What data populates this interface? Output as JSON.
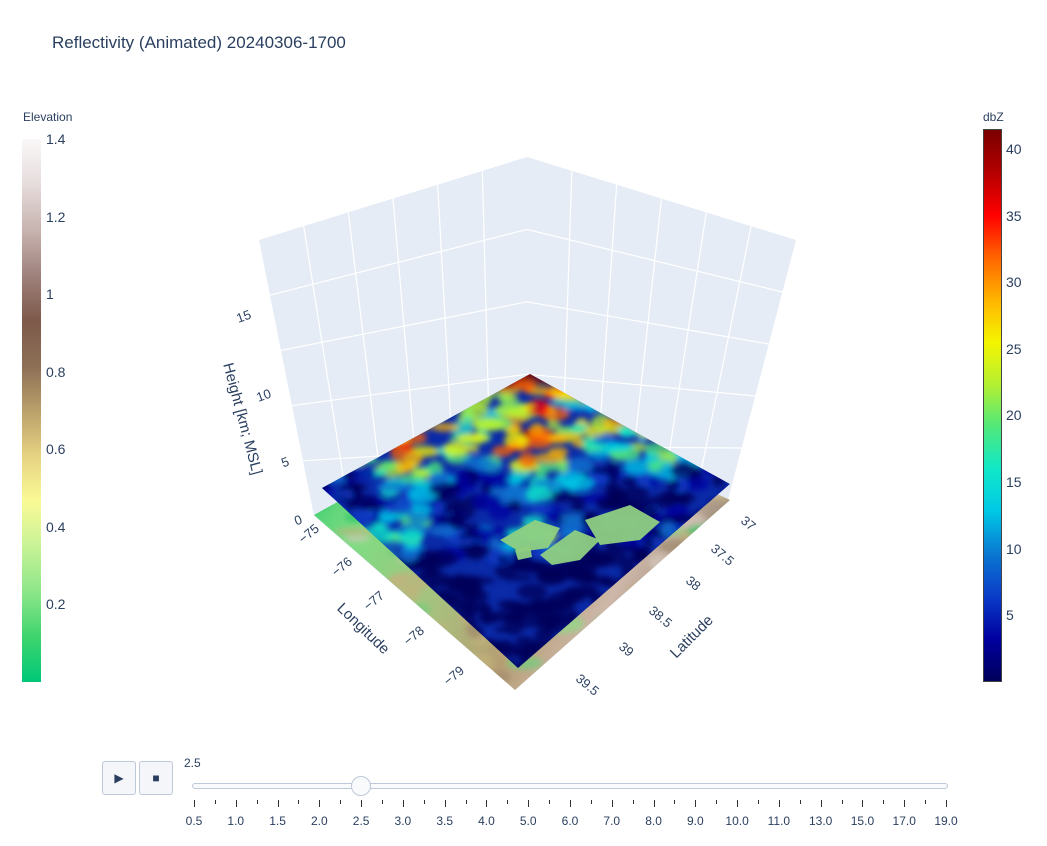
{
  "title": "Reflectivity (Animated) 20240306-1700",
  "colorbars": {
    "elevation": {
      "title": "Elevation",
      "ticks": [
        "1.4",
        "1.2",
        "1",
        "0.8",
        "0.6",
        "0.4",
        "0.2"
      ],
      "tick_values": [
        1.4,
        1.2,
        1.0,
        0.8,
        0.6,
        0.4,
        0.2
      ],
      "range": [
        0.0,
        1.4
      ],
      "colors": [
        "#00c878",
        "#3ed46e",
        "#8ee68a",
        "#c8f296",
        "#fafa96",
        "#e6d282",
        "#b9a06a",
        "#8c6e55",
        "#7d5a4b",
        "#a0827d",
        "#c8b4b0",
        "#e6dcdc",
        "#faf8f8"
      ]
    },
    "reflectivity": {
      "title": "dbZ",
      "ticks": [
        "40",
        "35",
        "30",
        "25",
        "20",
        "15",
        "10",
        "5"
      ],
      "tick_values": [
        40,
        35,
        30,
        25,
        20,
        15,
        10,
        5
      ],
      "range": [
        0.0,
        41.5
      ],
      "colors": [
        "#00005a",
        "#0000a0",
        "#0a3cc8",
        "#0a78d2",
        "#00c8e6",
        "#10e8c8",
        "#50e87a",
        "#b4f032",
        "#f5f500",
        "#ffb400",
        "#ff6400",
        "#ff0000",
        "#b40000",
        "#7a0000"
      ]
    }
  },
  "chart_data": {
    "type": "3d-surface",
    "title": "Reflectivity (Animated) 20240306-1700",
    "axes": {
      "x": {
        "label": "Longitude",
        "ticks": [
          "−75",
          "−76",
          "−77",
          "−78",
          "−79"
        ],
        "values": [
          -75,
          -76,
          -77,
          -78,
          -79
        ]
      },
      "y": {
        "label": "Latitude",
        "ticks": [
          "37",
          "37.5",
          "38",
          "38.5",
          "39",
          "39.5"
        ],
        "values": [
          37,
          37.5,
          38,
          38.5,
          39,
          39.5
        ]
      },
      "z": {
        "label": "Height [km; MSL]",
        "ticks": [
          "0",
          "5",
          "10",
          "15"
        ],
        "values": [
          0,
          5,
          10,
          15
        ]
      }
    },
    "series": [
      {
        "name": "Elevation",
        "colorbar": "elevation",
        "range": [
          0,
          1.4
        ]
      },
      {
        "name": "Reflectivity",
        "colorbar": "dbZ",
        "range": [
          0,
          41.5
        ],
        "height_km": 2.5
      }
    ]
  },
  "animation": {
    "play_icon": "play-icon",
    "stop_icon": "stop-icon",
    "current_value": "2.5",
    "active_index": 4,
    "steps": [
      "0.5",
      "1.0",
      "1.5",
      "2.0",
      "2.5",
      "3.0",
      "3.5",
      "4.0",
      "5.0",
      "6.0",
      "7.0",
      "8.0",
      "9.0",
      "10.0",
      "11.0",
      "13.0",
      "15.0",
      "17.0",
      "19.0"
    ]
  }
}
